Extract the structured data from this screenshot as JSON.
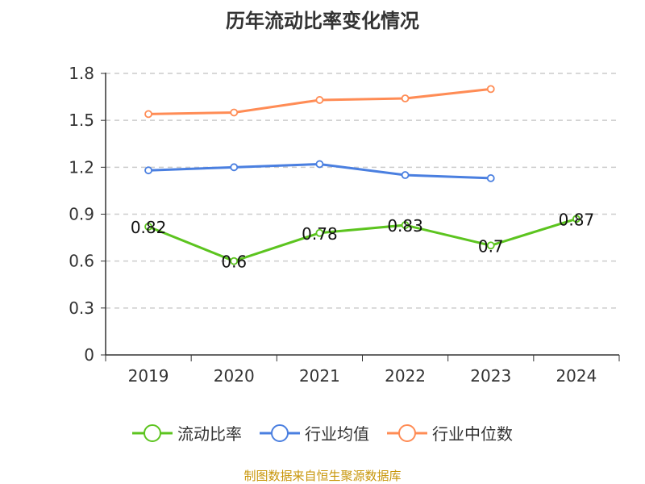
{
  "chart_data": {
    "type": "line",
    "title": "历年流动比率变化情况",
    "categories": [
      "2019",
      "2020",
      "2021",
      "2022",
      "2023",
      "2024"
    ],
    "ylim": [
      0,
      1.8
    ],
    "yticks": [
      "0",
      "0.3",
      "0.6",
      "0.9",
      "1.2",
      "1.5",
      "1.8"
    ],
    "grid": true,
    "legend_position": "bottom",
    "series": [
      {
        "name": "流动比率",
        "color": "#5cc41f",
        "values": [
          0.82,
          0.6,
          0.78,
          0.83,
          0.7,
          0.87
        ],
        "labels": [
          "0.82",
          "0.6",
          "0.78",
          "0.83",
          "0.7",
          "0.87"
        ]
      },
      {
        "name": "行业均值",
        "color": "#4a7fe0",
        "values": [
          1.18,
          1.2,
          1.22,
          1.15,
          1.13,
          null
        ]
      },
      {
        "name": "行业中位数",
        "color": "#ff8c55",
        "values": [
          1.54,
          1.55,
          1.63,
          1.64,
          1.7,
          null
        ]
      }
    ]
  },
  "source": "制图数据来自恒生聚源数据库"
}
